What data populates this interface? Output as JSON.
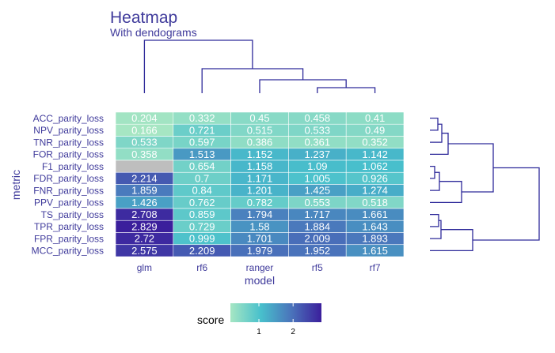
{
  "title": "Heatmap",
  "subtitle": "With dendograms",
  "chart_data": {
    "type": "heatmap",
    "title": "Heatmap",
    "subtitle": "With dendograms",
    "xlabel": "model",
    "ylabel": "metric",
    "x_categories": [
      "glm",
      "rf6",
      "ranger",
      "rf5",
      "rf7"
    ],
    "y_categories": [
      "ACC_parity_loss",
      "NPV_parity_loss",
      "TNR_parity_loss",
      "FOR_parity_loss",
      "F1_parity_loss",
      "FDR_parity_loss",
      "FNR_parity_loss",
      "PPV_parity_loss",
      "TS_parity_loss",
      "TPR_parity_loss",
      "FPR_parity_loss",
      "MCC_parity_loss"
    ],
    "values": [
      [
        0.204,
        0.332,
        0.45,
        0.458,
        0.41
      ],
      [
        0.166,
        0.721,
        0.515,
        0.533,
        0.49
      ],
      [
        0.533,
        0.597,
        0.386,
        0.361,
        0.352
      ],
      [
        0.358,
        1.513,
        1.152,
        1.237,
        1.142
      ],
      [
        null,
        0.654,
        1.158,
        1.09,
        1.062
      ],
      [
        2.214,
        0.7,
        1.171,
        1.005,
        0.926
      ],
      [
        1.859,
        0.84,
        1.201,
        1.425,
        1.274
      ],
      [
        1.426,
        0.762,
        0.782,
        0.553,
        0.518
      ],
      [
        2.708,
        0.859,
        1.794,
        1.717,
        1.661
      ],
      [
        2.829,
        0.729,
        1.58,
        1.884,
        1.643
      ],
      [
        2.72,
        0.999,
        1.701,
        2.009,
        1.893
      ],
      [
        2.575,
        2.209,
        1.979,
        1.952,
        1.615
      ]
    ],
    "labels": [
      [
        "0.204",
        "0.332",
        "0.45",
        "0.458",
        "0.41"
      ],
      [
        "0.166",
        "0.721",
        "0.515",
        "0.533",
        "0.49"
      ],
      [
        "0.533",
        "0.597",
        "0.386",
        "0.361",
        "0.352"
      ],
      [
        "0.358",
        "1.513",
        "1.152",
        "1.237",
        "1.142"
      ],
      [
        "",
        "0.654",
        "1.158",
        "1.09",
        "1.062"
      ],
      [
        "2.214",
        "0.7",
        "1.171",
        "1.005",
        "0.926"
      ],
      [
        "1.859",
        "0.84",
        "1.201",
        "1.425",
        "1.274"
      ],
      [
        "1.426",
        "0.762",
        "0.782",
        "0.553",
        "0.518"
      ],
      [
        "2.708",
        "0.859",
        "1.794",
        "1.717",
        "1.661"
      ],
      [
        "2.829",
        "0.729",
        "1.58",
        "1.884",
        "1.643"
      ],
      [
        "2.72",
        "0.999",
        "1.701",
        "2.009",
        "1.893"
      ],
      [
        "2.575",
        "2.209",
        "1.979",
        "1.952",
        "1.615"
      ]
    ],
    "na_color": "#bebebe",
    "color_scale": {
      "min": 0.166,
      "max": 2.829,
      "stops": [
        "#a6e6c3",
        "#48c0cc",
        "#4a74bb",
        "#3b1f9c"
      ]
    },
    "legend": {
      "title": "score",
      "ticks": [
        1,
        2
      ],
      "tick_labels": [
        "1",
        "2"
      ],
      "placement": "bottom"
    },
    "dendrograms": {
      "columns": "top",
      "rows": "right"
    },
    "text_color": "#3f3a9b",
    "line_color": "#2e2a9a"
  }
}
